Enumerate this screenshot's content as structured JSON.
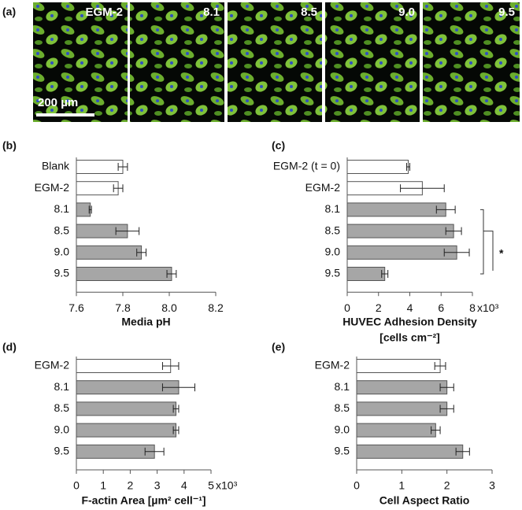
{
  "images": {
    "panel": "(a)",
    "labels": [
      "EGM-2",
      "8.1",
      "8.5",
      "9.0",
      "9.5"
    ],
    "scale_bar": "200 µm"
  },
  "chart_data": [
    {
      "type": "barh",
      "panel": "(b)",
      "xlabel": "Media pH",
      "categories": [
        "Blank",
        "EGM-2",
        "8.1",
        "8.5",
        "9.0",
        "9.5"
      ],
      "values": [
        7.8,
        7.78,
        7.66,
        7.82,
        7.88,
        8.01
      ],
      "errors": [
        0.02,
        0.02,
        0.005,
        0.05,
        0.02,
        0.02
      ],
      "colors": [
        "#ffffff",
        "#ffffff",
        "#a6a6a6",
        "#a6a6a6",
        "#a6a6a6",
        "#a6a6a6"
      ],
      "xlim": [
        7.6,
        8.2
      ],
      "xticks": [
        7.6,
        7.8,
        {
          "value": 8,
          "label": "8.0"
        },
        8.2
      ]
    },
    {
      "type": "barh",
      "panel": "(c)",
      "xlabel": "HUVEC Adhesion Density",
      "xlabel_units": "[cells cm⁻²]",
      "x_multiplier": "x10³",
      "significance": "*",
      "categories": [
        "EGM-2 (t = 0)",
        "EGM-2",
        "8.1",
        "8.5",
        "9.0",
        "9.5"
      ],
      "values": [
        3.9,
        4.8,
        6.3,
        6.8,
        7.0,
        2.4
      ],
      "errors": [
        0.1,
        1.4,
        0.6,
        0.5,
        0.8,
        0.2
      ],
      "colors": [
        "#ffffff",
        "#ffffff",
        "#a6a6a6",
        "#a6a6a6",
        "#a6a6a6",
        "#a6a6a6"
      ],
      "xlim": [
        0,
        8
      ],
      "xticks": [
        0,
        2,
        4,
        6,
        8
      ]
    },
    {
      "type": "barh",
      "panel": "(d)",
      "xlabel": "F-actin Area [µm² cell⁻¹]",
      "x_multiplier": "x10³",
      "categories": [
        "EGM-2",
        "8.1",
        "8.5",
        "9.0",
        "9.5"
      ],
      "values": [
        3.5,
        3.8,
        3.7,
        3.7,
        2.9
      ],
      "errors": [
        0.3,
        0.6,
        0.1,
        0.1,
        0.35
      ],
      "colors": [
        "#ffffff",
        "#a6a6a6",
        "#a6a6a6",
        "#a6a6a6",
        "#a6a6a6"
      ],
      "xlim": [
        0,
        5
      ],
      "xticks": [
        0,
        1,
        2,
        3,
        4,
        5
      ]
    },
    {
      "type": "barh",
      "panel": "(e)",
      "xlabel": "Cell Aspect Ratio",
      "categories": [
        "EGM-2",
        "8.1",
        "8.5",
        "9.0",
        "9.5"
      ],
      "values": [
        1.85,
        2.0,
        2.0,
        1.75,
        2.35
      ],
      "errors": [
        0.12,
        0.15,
        0.15,
        0.1,
        0.15
      ],
      "colors": [
        "#ffffff",
        "#a6a6a6",
        "#a6a6a6",
        "#a6a6a6",
        "#a6a6a6"
      ],
      "xlim": [
        0,
        3
      ],
      "xticks": [
        0,
        1,
        2,
        3
      ]
    }
  ]
}
